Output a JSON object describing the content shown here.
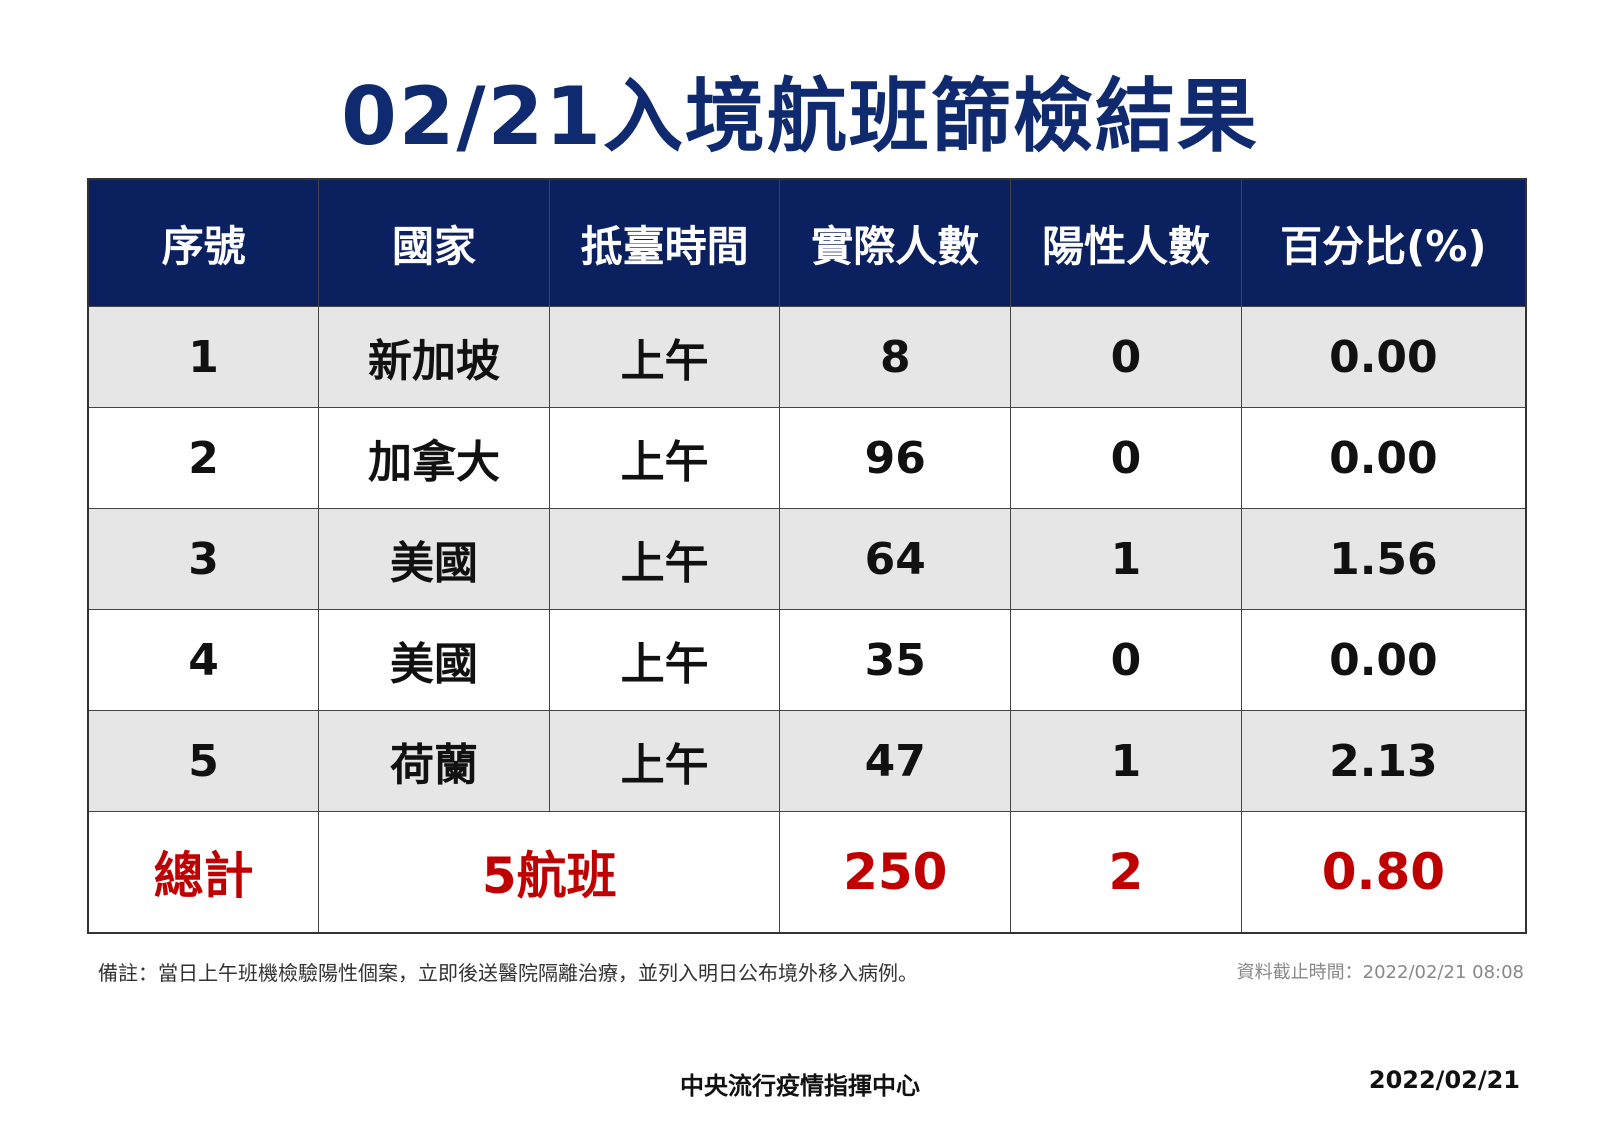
{
  "title": "02/21入境航班篩檢結果",
  "colors": {
    "header_bg": "#0b205f",
    "title": "#0f2a6e",
    "total": "#c00000",
    "shade": "#e6e6e6"
  },
  "table": {
    "headers": [
      "序號",
      "國家",
      "抵臺時間",
      "實際人數",
      "陽性人數",
      "百分比(%)"
    ],
    "rows": [
      [
        "1",
        "新加坡",
        "上午",
        "8",
        "0",
        "0.00"
      ],
      [
        "2",
        "加拿大",
        "上午",
        "96",
        "0",
        "0.00"
      ],
      [
        "3",
        "美國",
        "上午",
        "64",
        "1",
        "1.56"
      ],
      [
        "4",
        "美國",
        "上午",
        "35",
        "0",
        "0.00"
      ],
      [
        "5",
        "荷蘭",
        "上午",
        "47",
        "1",
        "2.13"
      ]
    ],
    "total": {
      "label": "總計",
      "flights": "5航班",
      "passengers": "250",
      "positive": "2",
      "percent": "0.80"
    }
  },
  "note": "備註：當日上午班機檢驗陽性個案，立即後送醫院隔離治療，並列入明日公布境外移入病例。",
  "cutoff": "資料截止時間：2022/02/21 08:08",
  "org": "中央流行疫情指揮中心",
  "date": "2022/02/21"
}
